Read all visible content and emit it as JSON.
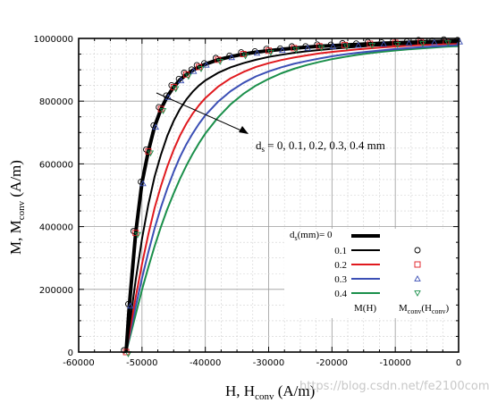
{
  "chart_data": {
    "type": "line",
    "xlabel": "H, H",
    "xlabel_sub": "conv",
    "xlabel_unit": " (A/m)",
    "ylabel": "M, M",
    "ylabel_sub": "conv",
    "ylabel_unit": " (A/m)",
    "xlim": [
      -60000,
      0
    ],
    "ylim": [
      0,
      1000000
    ],
    "x_ticks": [
      -60000,
      -50000,
      -40000,
      -30000,
      -20000,
      -10000,
      0
    ],
    "y_ticks": [
      0,
      200000,
      400000,
      600000,
      800000,
      1000000
    ],
    "grid": "dashed major and minor",
    "annotation": {
      "prefix": "d",
      "sub": "s",
      "text": " = 0, 0.1, 0.2, 0.3, 0.4 mm"
    },
    "legend": {
      "placement": "lower-right",
      "header_prefix": "d",
      "header_sub": "s",
      "header_rest": "(mm)= 0",
      "col_line_label": "M(H)",
      "col_marker_prefix": "M",
      "col_marker_sub1": "conv",
      "col_marker_mid": "(H",
      "col_marker_sub2": "conv",
      "col_marker_end": ")"
    },
    "x": [
      -52500,
      -52000,
      -51000,
      -50000,
      -49000,
      -48000,
      -47000,
      -46000,
      -45000,
      -44000,
      -43000,
      -42000,
      -41000,
      -40000,
      -38000,
      -36000,
      -34000,
      -32000,
      -30000,
      -28000,
      -26000,
      -24000,
      -22000,
      -20000,
      -18000,
      -16000,
      -14000,
      -12000,
      -10000,
      -8000,
      -6000,
      -4000,
      -2000,
      0
    ],
    "series": [
      {
        "name": "0",
        "color": "#000000",
        "width": 4,
        "marker": "circle",
        "values": [
          0,
          150000,
          380000,
          540000,
          640000,
          720000,
          775000,
          815000,
          845000,
          868000,
          885000,
          898000,
          909000,
          918000,
          932000,
          942000,
          950000,
          956000,
          961000,
          965000,
          969000,
          972000,
          975000,
          977000,
          979000,
          981000,
          983000,
          984500,
          986000,
          987500,
          989000,
          990000,
          991000,
          992000
        ]
      },
      {
        "name": "0.1",
        "color": "#000000",
        "width": 2,
        "marker": "circle",
        "values": [
          0,
          80000,
          230000,
          360000,
          470000,
          560000,
          630000,
          690000,
          737000,
          775000,
          805000,
          830000,
          850000,
          866000,
          890000,
          908000,
          921000,
          932000,
          941000,
          948000,
          954000,
          959000,
          963000,
          967000,
          970000,
          973000,
          976000,
          978000,
          980000,
          982000,
          984000,
          985500,
          987000,
          988000
        ]
      },
      {
        "name": "0.2",
        "color": "#e0191e",
        "width": 2,
        "marker": "square",
        "values": [
          0,
          60000,
          175000,
          280000,
          375000,
          460000,
          530000,
          592000,
          645000,
          690000,
          728000,
          760000,
          787000,
          810000,
          846000,
          873000,
          893000,
          909000,
          921000,
          931000,
          939000,
          946000,
          952000,
          957000,
          961000,
          965000,
          968500,
          971500,
          974000,
          976500,
          979000,
          981000,
          982500,
          984000
        ]
      },
      {
        "name": "0.3",
        "color": "#3b4fb5",
        "width": 2,
        "marker": "triangle-up",
        "values": [
          0,
          50000,
          145000,
          235000,
          318000,
          395000,
          462000,
          522000,
          575000,
          622000,
          662000,
          697000,
          728000,
          755000,
          798000,
          832000,
          858000,
          879000,
          895000,
          908000,
          919000,
          928000,
          936000,
          943000,
          949000,
          954000,
          958500,
          962500,
          966000,
          969000,
          972000,
          974500,
          977000,
          979000
        ]
      },
      {
        "name": "0.4",
        "color": "#1a8f4a",
        "width": 2,
        "marker": "triangle-down",
        "values": [
          0,
          40000,
          120000,
          198000,
          270000,
          338000,
          400000,
          456000,
          506000,
          552000,
          594000,
          632000,
          666000,
          697000,
          748000,
          790000,
          823000,
          850000,
          871000,
          889000,
          903000,
          915000,
          925000,
          934000,
          941000,
          947500,
          953000,
          957500,
          961500,
          965000,
          968000,
          971000,
          973500,
          975500
        ]
      }
    ]
  },
  "watermark": "https://blog.csdn.net/fe2100com"
}
